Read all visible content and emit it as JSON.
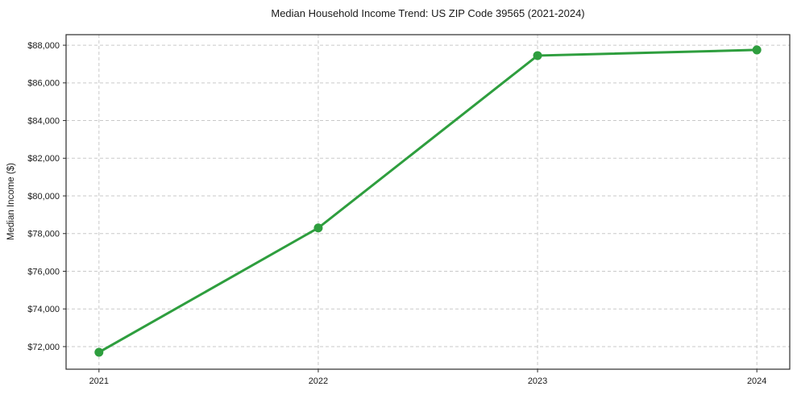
{
  "chart_data": {
    "type": "line",
    "title": "Median Household Income Trend: US ZIP Code 39565 (2021-2024)",
    "xlabel": "",
    "ylabel": "Median Income ($)",
    "x": [
      2021,
      2022,
      2023,
      2024
    ],
    "x_tick_labels": [
      "2021",
      "2022",
      "2023",
      "2024"
    ],
    "series": [
      {
        "name": "Median Household Income",
        "values": [
          71700,
          78300,
          87450,
          87750
        ]
      }
    ],
    "y_ticks": [
      72000,
      74000,
      76000,
      78000,
      80000,
      82000,
      84000,
      86000,
      88000
    ],
    "y_tick_labels": [
      "$72,000",
      "$74,000",
      "$76,000",
      "$78,000",
      "$80,000",
      "$82,000",
      "$84,000",
      "$86,000",
      "$88,000"
    ],
    "ylim": [
      70800,
      88560
    ],
    "xlim": [
      2020.85,
      2024.15
    ],
    "grid": "dashed-both-axes",
    "legend": "none",
    "colors": {
      "line": "#2e9e3e",
      "marker": "#2e9e3e",
      "grid": "#c9c9c9",
      "spine": "#2b2b2b",
      "text": "#1a1a1a"
    }
  }
}
